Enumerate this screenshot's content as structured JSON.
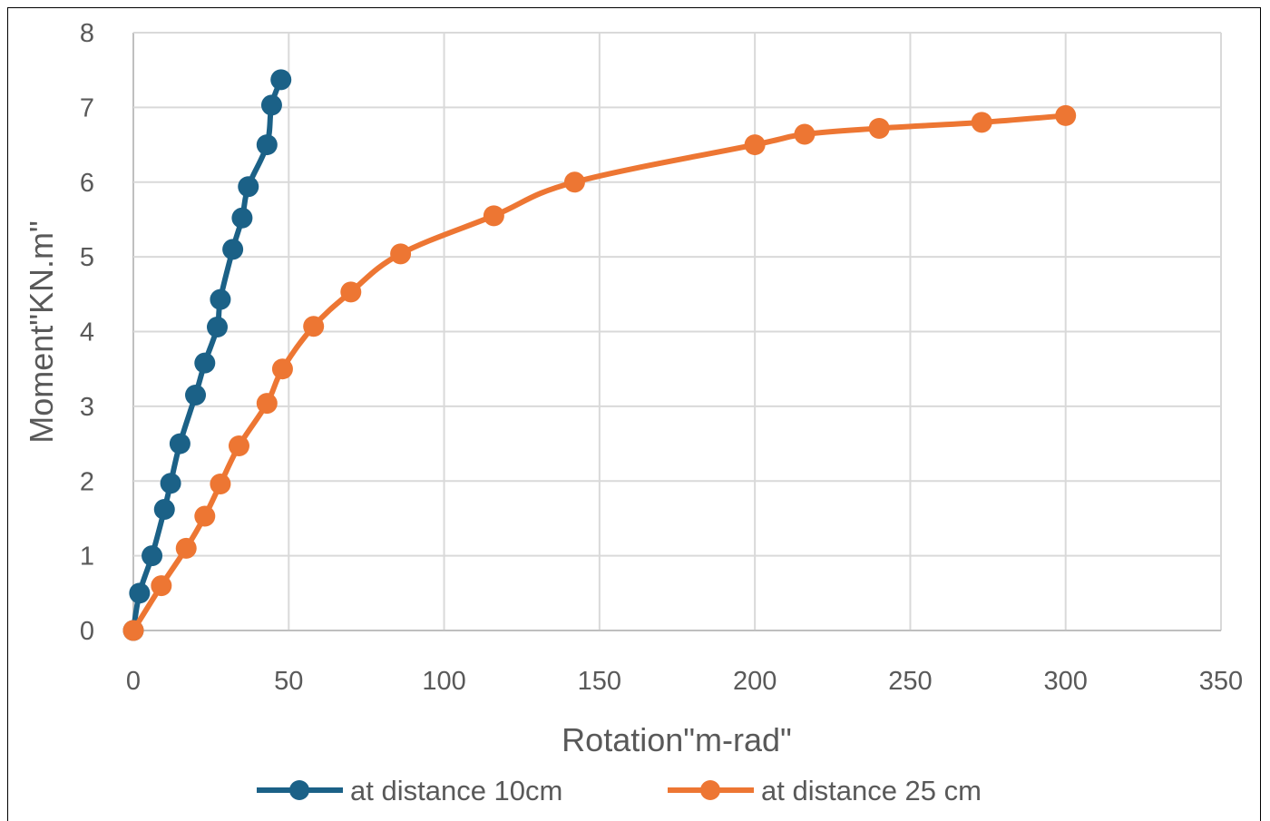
{
  "chart_data": {
    "type": "line",
    "title": "",
    "xlabel": "Rotation\"m-rad\"",
    "ylabel": "Moment\"KN.m\"",
    "xlim": [
      0,
      350
    ],
    "ylim": [
      0,
      8
    ],
    "x_ticks": [
      0,
      50,
      100,
      150,
      200,
      250,
      300,
      350
    ],
    "y_ticks": [
      0,
      1,
      2,
      3,
      4,
      5,
      6,
      7,
      8
    ],
    "grid": true,
    "legend_position": "bottom",
    "series": [
      {
        "name": "at distance 10cm",
        "color": "#1b6187",
        "points": [
          [
            0,
            0
          ],
          [
            2,
            0.5
          ],
          [
            6,
            1.0
          ],
          [
            10,
            1.62
          ],
          [
            12,
            1.97
          ],
          [
            15,
            2.5
          ],
          [
            20,
            3.15
          ],
          [
            23,
            3.58
          ],
          [
            27,
            4.06
          ],
          [
            28,
            4.43
          ],
          [
            32,
            5.1
          ],
          [
            35,
            5.52
          ],
          [
            37,
            5.94
          ],
          [
            43,
            6.5
          ],
          [
            44.5,
            7.03
          ],
          [
            47.5,
            7.37
          ]
        ]
      },
      {
        "name": "at distance 25 cm",
        "color": "#ed7633",
        "points": [
          [
            0,
            0
          ],
          [
            9,
            0.6
          ],
          [
            17,
            1.1
          ],
          [
            23,
            1.53
          ],
          [
            28,
            1.96
          ],
          [
            34,
            2.47
          ],
          [
            43,
            3.04
          ],
          [
            48,
            3.5
          ],
          [
            58,
            4.07
          ],
          [
            70,
            4.53
          ],
          [
            86,
            5.04
          ],
          [
            116,
            5.55
          ],
          [
            142,
            6.0
          ],
          [
            200,
            6.5
          ],
          [
            216,
            6.64
          ],
          [
            240,
            6.72
          ],
          [
            273,
            6.8
          ],
          [
            300,
            6.89
          ]
        ]
      }
    ]
  }
}
